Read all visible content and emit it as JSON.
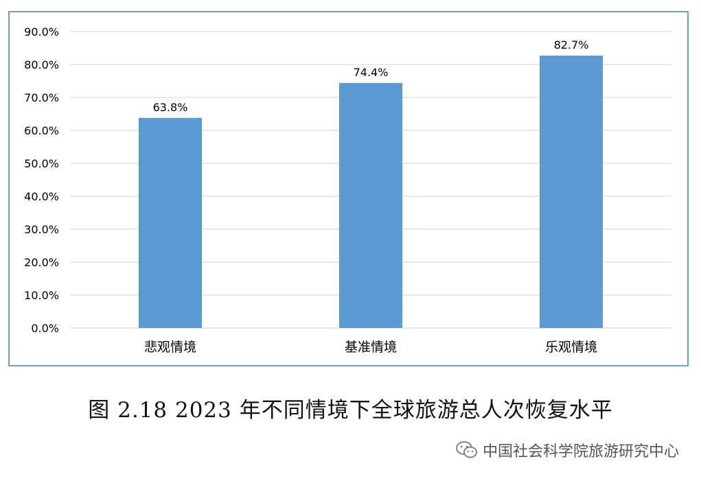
{
  "chart_data": {
    "type": "bar",
    "categories": [
      "悲观情境",
      "基准情境",
      "乐观情境"
    ],
    "values": [
      63.8,
      74.4,
      82.7
    ],
    "value_labels": [
      "63.8%",
      "74.4%",
      "82.7%"
    ],
    "ylim": [
      0,
      90
    ],
    "yticks": [
      0,
      10,
      20,
      30,
      40,
      50,
      60,
      70,
      80,
      90
    ],
    "ytick_labels": [
      "0.0%",
      "10.0%",
      "20.0%",
      "30.0%",
      "40.0%",
      "50.0%",
      "60.0%",
      "70.0%",
      "80.0%",
      "90.0%"
    ],
    "grid": true,
    "bar_color": "#5b9bd5",
    "grid_color": "#d9d9d9",
    "frame_color": "#6d9fd0"
  },
  "caption": "图 2.18 2023 年不同情境下全球旅游总人次恢复水平",
  "watermark": {
    "text": "中国社会科学院旅游研究中心",
    "icon": "wechat-icon"
  }
}
